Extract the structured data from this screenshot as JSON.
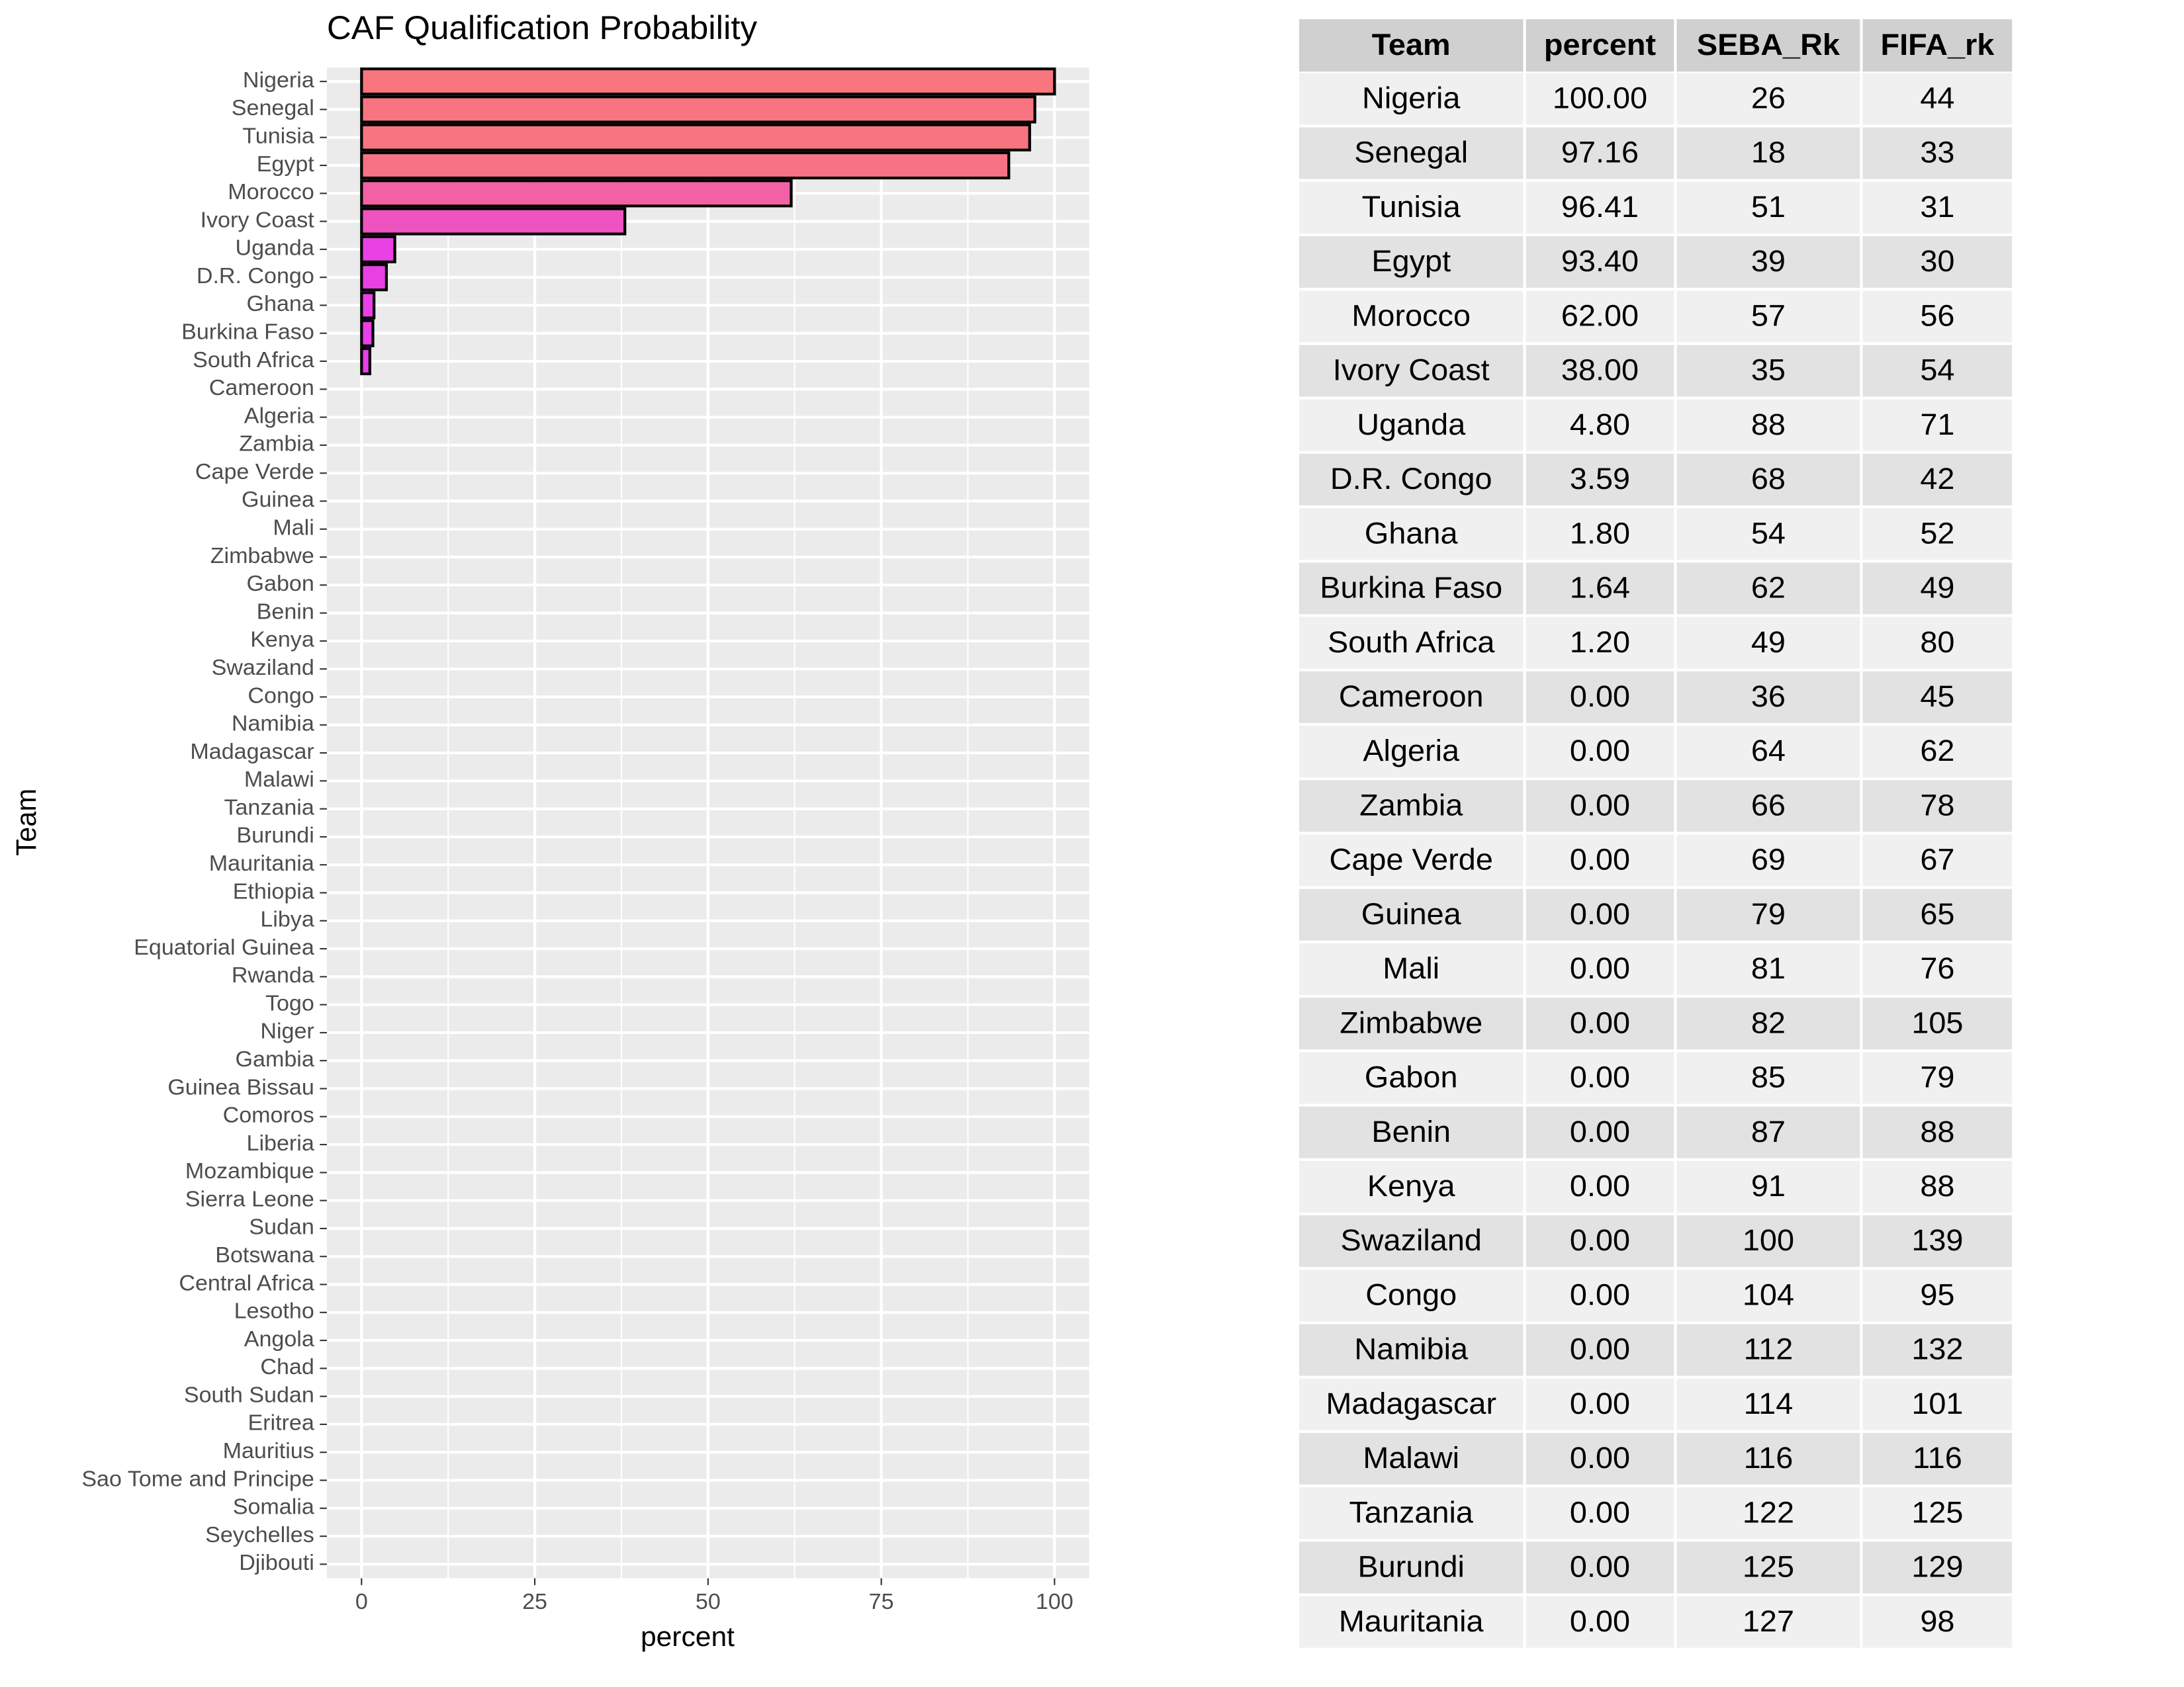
{
  "chart_data": {
    "type": "bar",
    "orientation": "horizontal",
    "title": "CAF Qualification Probability",
    "xlabel": "percent",
    "ylabel": "Team",
    "categories": [
      "Nigeria",
      "Senegal",
      "Tunisia",
      "Egypt",
      "Morocco",
      "Ivory Coast",
      "Uganda",
      "D.R. Congo",
      "Ghana",
      "Burkina Faso",
      "South Africa",
      "Cameroon",
      "Algeria",
      "Zambia",
      "Cape Verde",
      "Guinea",
      "Mali",
      "Zimbabwe",
      "Gabon",
      "Benin",
      "Kenya",
      "Swaziland",
      "Congo",
      "Namibia",
      "Madagascar",
      "Malawi",
      "Tanzania",
      "Burundi",
      "Mauritania",
      "Ethiopia",
      "Libya",
      "Equatorial Guinea",
      "Rwanda",
      "Togo",
      "Niger",
      "Gambia",
      "Guinea Bissau",
      "Comoros",
      "Liberia",
      "Mozambique",
      "Sierra Leone",
      "Sudan",
      "Botswana",
      "Central Africa",
      "Lesotho",
      "Angola",
      "Chad",
      "South Sudan",
      "Eritrea",
      "Mauritius",
      "Sao Tome and Principe",
      "Somalia",
      "Seychelles",
      "Djibouti"
    ],
    "values": [
      100,
      97.16,
      96.41,
      93.4,
      62,
      38,
      4.8,
      3.59,
      1.8,
      1.64,
      1.2,
      0,
      0,
      0,
      0,
      0,
      0,
      0,
      0,
      0,
      0,
      0,
      0,
      0,
      0,
      0,
      0,
      0,
      0,
      0,
      0,
      0,
      0,
      0,
      0,
      0,
      0,
      0,
      0,
      0,
      0,
      0,
      0,
      0,
      0,
      0,
      0,
      0,
      0,
      0,
      0,
      0,
      0,
      0
    ],
    "xlim": [
      -5,
      105
    ],
    "xticks": [
      0,
      25,
      50,
      75,
      100
    ],
    "grid": true,
    "fill_low": "#e83ee8",
    "fill_high": "#f8767d",
    "edge_color": "#000000"
  },
  "table": {
    "columns": [
      "Team",
      "percent",
      "SEBA_Rk",
      "FIFA_rk"
    ],
    "rows": [
      [
        "Nigeria",
        "100.00",
        "26",
        "44"
      ],
      [
        "Senegal",
        "97.16",
        "18",
        "33"
      ],
      [
        "Tunisia",
        "96.41",
        "51",
        "31"
      ],
      [
        "Egypt",
        "93.40",
        "39",
        "30"
      ],
      [
        "Morocco",
        "62.00",
        "57",
        "56"
      ],
      [
        "Ivory Coast",
        "38.00",
        "35",
        "54"
      ],
      [
        "Uganda",
        "4.80",
        "88",
        "71"
      ],
      [
        "D.R. Congo",
        "3.59",
        "68",
        "42"
      ],
      [
        "Ghana",
        "1.80",
        "54",
        "52"
      ],
      [
        "Burkina Faso",
        "1.64",
        "62",
        "49"
      ],
      [
        "South Africa",
        "1.20",
        "49",
        "80"
      ],
      [
        "Cameroon",
        "0.00",
        "36",
        "45"
      ],
      [
        "Algeria",
        "0.00",
        "64",
        "62"
      ],
      [
        "Zambia",
        "0.00",
        "66",
        "78"
      ],
      [
        "Cape Verde",
        "0.00",
        "69",
        "67"
      ],
      [
        "Guinea",
        "0.00",
        "79",
        "65"
      ],
      [
        "Mali",
        "0.00",
        "81",
        "76"
      ],
      [
        "Zimbabwe",
        "0.00",
        "82",
        "105"
      ],
      [
        "Gabon",
        "0.00",
        "85",
        "79"
      ],
      [
        "Benin",
        "0.00",
        "87",
        "88"
      ],
      [
        "Kenya",
        "0.00",
        "91",
        "88"
      ],
      [
        "Swaziland",
        "0.00",
        "100",
        "139"
      ],
      [
        "Congo",
        "0.00",
        "104",
        "95"
      ],
      [
        "Namibia",
        "0.00",
        "112",
        "132"
      ],
      [
        "Madagascar",
        "0.00",
        "114",
        "101"
      ],
      [
        "Malawi",
        "0.00",
        "116",
        "116"
      ],
      [
        "Tanzania",
        "0.00",
        "122",
        "125"
      ],
      [
        "Burundi",
        "0.00",
        "125",
        "129"
      ],
      [
        "Mauritania",
        "0.00",
        "127",
        "98"
      ]
    ]
  }
}
